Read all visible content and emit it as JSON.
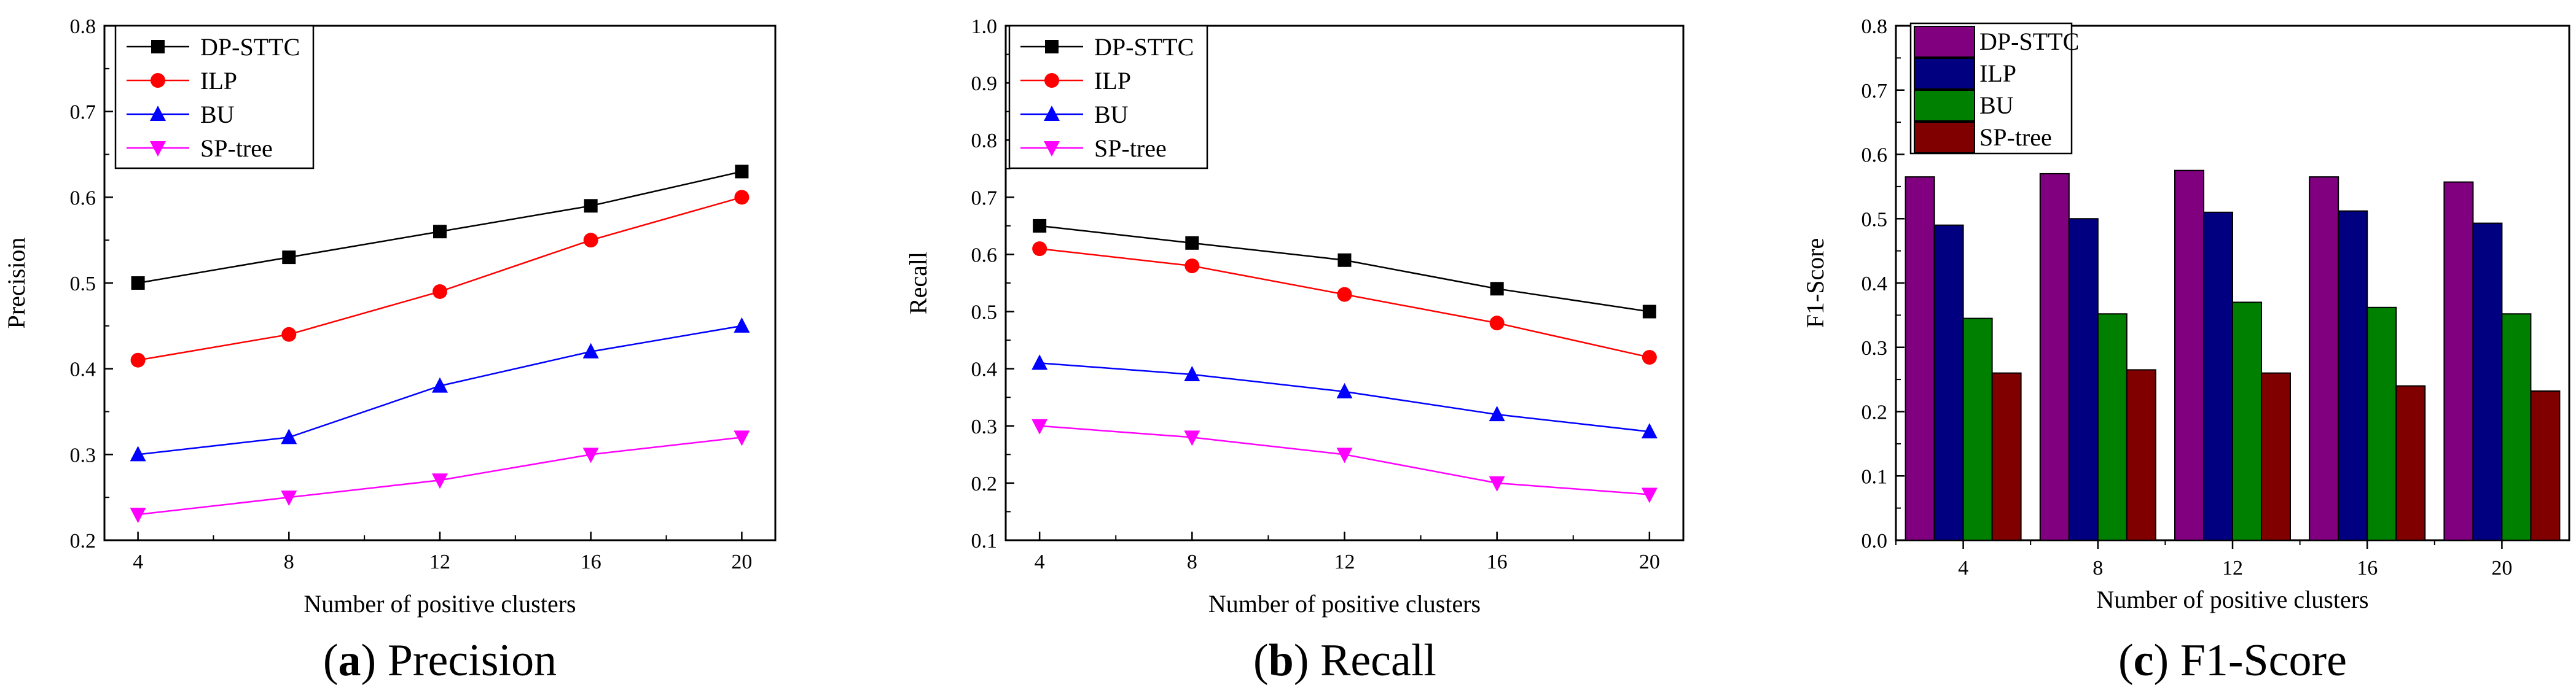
{
  "chart_data": [
    {
      "id": "precision",
      "type": "line",
      "caption_letter": "a",
      "caption_text": "Precision",
      "xlabel": "Number of positive clusters",
      "ylabel": "Precision",
      "x": [
        4,
        8,
        12,
        16,
        20
      ],
      "xticks": [
        "4",
        "8",
        "12",
        "16",
        "20"
      ],
      "ylim": [
        0.2,
        0.8
      ],
      "yticks": [
        "0.2",
        "0.3",
        "0.4",
        "0.5",
        "0.6",
        "0.7",
        "0.8"
      ],
      "legend_position": "top-left",
      "series": [
        {
          "name": "DP-STTC",
          "color": "#000000",
          "marker": "square",
          "values": [
            0.5,
            0.53,
            0.56,
            0.59,
            0.63
          ]
        },
        {
          "name": "ILP",
          "color": "#ff0000",
          "marker": "circle",
          "values": [
            0.41,
            0.44,
            0.49,
            0.55,
            0.6
          ]
        },
        {
          "name": "BU",
          "color": "#0000ff",
          "marker": "triangle-up",
          "values": [
            0.3,
            0.32,
            0.38,
            0.42,
            0.45
          ]
        },
        {
          "name": "SP-tree",
          "color": "#ff00ff",
          "marker": "triangle-down",
          "values": [
            0.23,
            0.25,
            0.27,
            0.3,
            0.32
          ]
        }
      ]
    },
    {
      "id": "recall",
      "type": "line",
      "caption_letter": "b",
      "caption_text": "Recall",
      "xlabel": "Number of positive clusters",
      "ylabel": "Recall",
      "x": [
        4,
        8,
        12,
        16,
        20
      ],
      "xticks": [
        "4",
        "8",
        "12",
        "16",
        "20"
      ],
      "ylim": [
        0.1,
        1.0
      ],
      "yticks": [
        "0.1",
        "0.2",
        "0.3",
        "0.4",
        "0.5",
        "0.6",
        "0.7",
        "0.8",
        "0.9",
        "1.0"
      ],
      "legend_position": "top-left",
      "series": [
        {
          "name": "DP-STTC",
          "color": "#000000",
          "marker": "square",
          "values": [
            0.65,
            0.62,
            0.59,
            0.54,
            0.5
          ]
        },
        {
          "name": "ILP",
          "color": "#ff0000",
          "marker": "circle",
          "values": [
            0.61,
            0.58,
            0.53,
            0.48,
            0.42
          ]
        },
        {
          "name": "BU",
          "color": "#0000ff",
          "marker": "triangle-up",
          "values": [
            0.41,
            0.39,
            0.36,
            0.32,
            0.29
          ]
        },
        {
          "name": "SP-tree",
          "color": "#ff00ff",
          "marker": "triangle-down",
          "values": [
            0.3,
            0.28,
            0.25,
            0.2,
            0.18
          ]
        }
      ]
    },
    {
      "id": "f1",
      "type": "bar",
      "caption_letter": "c",
      "caption_text": "F1-Score",
      "xlabel": "Number of positive clusters",
      "ylabel": "F1-Score",
      "categories": [
        "4",
        "8",
        "12",
        "16",
        "20"
      ],
      "ylim": [
        0.0,
        0.8
      ],
      "yticks": [
        "0.0",
        "0.1",
        "0.2",
        "0.3",
        "0.4",
        "0.5",
        "0.6",
        "0.7",
        "0.8"
      ],
      "legend_position": "top-left",
      "series": [
        {
          "name": "DP-STTC",
          "color": "#800080",
          "values": [
            0.565,
            0.57,
            0.575,
            0.565,
            0.557
          ]
        },
        {
          "name": "ILP",
          "color": "#000080",
          "values": [
            0.49,
            0.5,
            0.51,
            0.512,
            0.493
          ]
        },
        {
          "name": "BU",
          "color": "#008000",
          "values": [
            0.345,
            0.352,
            0.37,
            0.362,
            0.352
          ]
        },
        {
          "name": "SP-tree",
          "color": "#800000",
          "values": [
            0.26,
            0.265,
            0.26,
            0.24,
            0.232
          ]
        }
      ]
    }
  ]
}
